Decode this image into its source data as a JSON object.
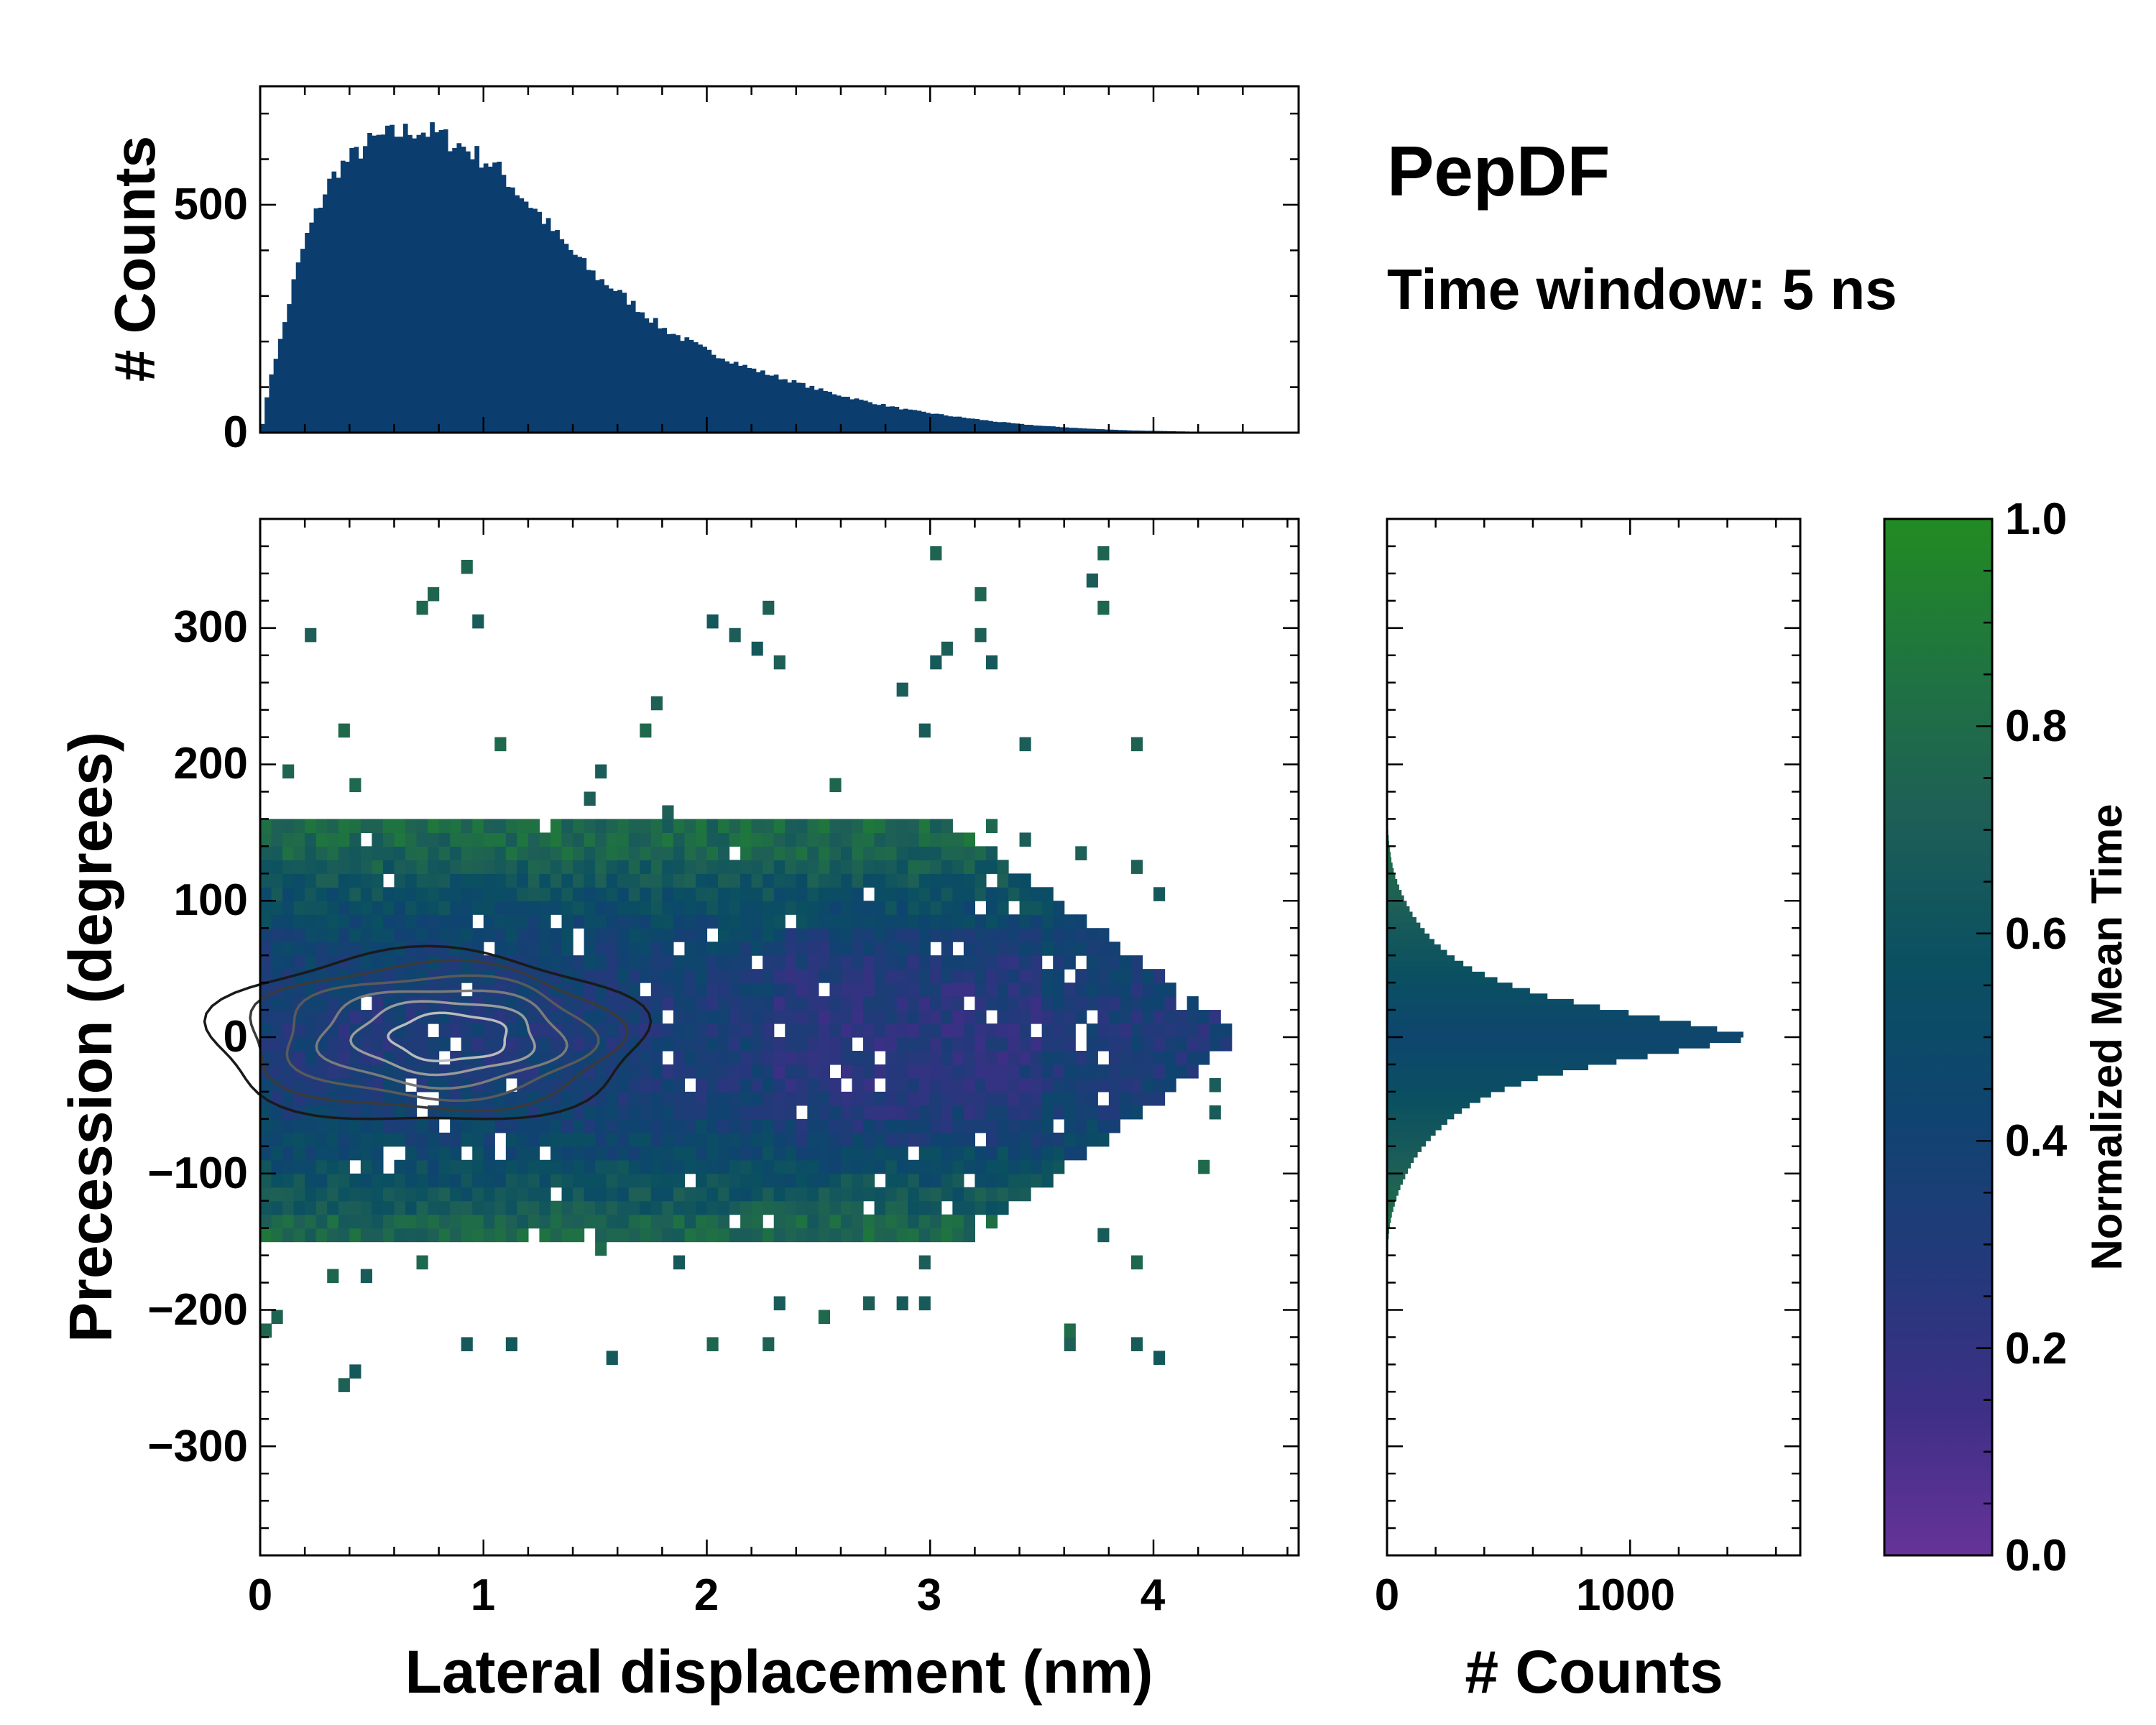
{
  "title": "PepDF",
  "subtitle": "Time window: 5 ns",
  "colors": {
    "hist_fill": "#0b3d6e",
    "cmap": [
      "#663399",
      "#3d2f86",
      "#223a7a",
      "#0f4470",
      "#0a5061",
      "#1e5f56",
      "#1f7440",
      "#228b22"
    ],
    "contour_dark": "#1a1a1a",
    "contour_light": "#bbbbbb"
  },
  "chart_data": [
    {
      "name": "top-histogram",
      "type": "bar",
      "title": "",
      "xlabel": "",
      "ylabel": "# Counts",
      "xlim": [
        0,
        4.65
      ],
      "ylim": [
        0,
        760
      ],
      "yticks": [
        0,
        500
      ],
      "bin_width": 0.02,
      "x": [
        0.01,
        0.05,
        0.1,
        0.15,
        0.2,
        0.25,
        0.3,
        0.35,
        0.4,
        0.45,
        0.5,
        0.55,
        0.6,
        0.65,
        0.7,
        0.75,
        0.8,
        0.85,
        0.9,
        0.95,
        1.0,
        1.05,
        1.1,
        1.15,
        1.2,
        1.25,
        1.3,
        1.35,
        1.4,
        1.45,
        1.5,
        1.6,
        1.7,
        1.8,
        1.9,
        2.0,
        2.1,
        2.2,
        2.3,
        2.4,
        2.5,
        2.6,
        2.7,
        2.8,
        2.9,
        3.0,
        3.1,
        3.2,
        3.3,
        3.4,
        3.5,
        3.6,
        3.7,
        3.8,
        3.9,
        4.0,
        4.1,
        4.2,
        4.3,
        4.4
      ],
      "values": [
        20,
        130,
        220,
        330,
        420,
        480,
        540,
        580,
        600,
        620,
        640,
        650,
        655,
        660,
        665,
        660,
        655,
        640,
        630,
        615,
        600,
        585,
        560,
        530,
        505,
        480,
        450,
        420,
        395,
        370,
        345,
        310,
        270,
        230,
        205,
        180,
        160,
        140,
        125,
        110,
        95,
        82,
        70,
        60,
        50,
        43,
        36,
        30,
        24,
        19,
        15,
        12,
        9,
        7,
        5,
        4,
        3,
        2,
        1,
        0
      ],
      "tick_labels": [
        "500",
        "0"
      ]
    },
    {
      "name": "main-heatmap",
      "type": "heatmap",
      "title": "",
      "xlabel": "Lateral displacement (nm)",
      "ylabel": "Precession (degrees)",
      "xlim": [
        0,
        4.65
      ],
      "ylim": [
        -380,
        380
      ],
      "xticks": [
        0,
        1,
        2,
        3,
        4
      ],
      "yticks": [
        -300,
        -200,
        -100,
        0,
        100,
        200,
        300
      ],
      "xtick_labels": [
        "0",
        "1",
        "2",
        "3",
        "4"
      ],
      "ytick_labels": [
        "300",
        "200",
        "100",
        "0",
        "−100",
        "−200",
        "−300"
      ],
      "color_meaning": "Normalized Mean Time",
      "density_peak": {
        "x": 0.9,
        "y": 0
      },
      "contour_levels": 6
    },
    {
      "name": "right-histogram",
      "type": "bar",
      "orientation": "horizontal",
      "title": "",
      "xlabel": "# Counts",
      "ylabel": "",
      "xlim": [
        0,
        1700
      ],
      "ylim": [
        -380,
        380
      ],
      "xticks": [
        0,
        1000
      ],
      "xtick_labels": [
        "0",
        "1000"
      ],
      "y": [
        -150,
        -140,
        -130,
        -120,
        -110,
        -100,
        -90,
        -80,
        -70,
        -60,
        -50,
        -40,
        -30,
        -20,
        -10,
        0,
        10,
        20,
        30,
        40,
        50,
        60,
        70,
        80,
        90,
        100,
        110,
        120,
        130,
        140,
        150,
        160
      ],
      "values": [
        5,
        10,
        20,
        35,
        55,
        80,
        110,
        150,
        200,
        260,
        340,
        450,
        620,
        880,
        1200,
        1520,
        1250,
        930,
        660,
        480,
        350,
        260,
        195,
        145,
        105,
        75,
        50,
        30,
        18,
        10,
        5,
        2
      ]
    },
    {
      "name": "colorbar",
      "type": "colorbar",
      "label": "Normalized Mean Time",
      "range": [
        0,
        1
      ],
      "ticks": [
        0.0,
        0.2,
        0.4,
        0.6,
        0.8,
        1.0
      ],
      "tick_labels": [
        "1.0",
        "0.8",
        "0.6",
        "0.4",
        "0.2",
        "0.0"
      ]
    }
  ]
}
